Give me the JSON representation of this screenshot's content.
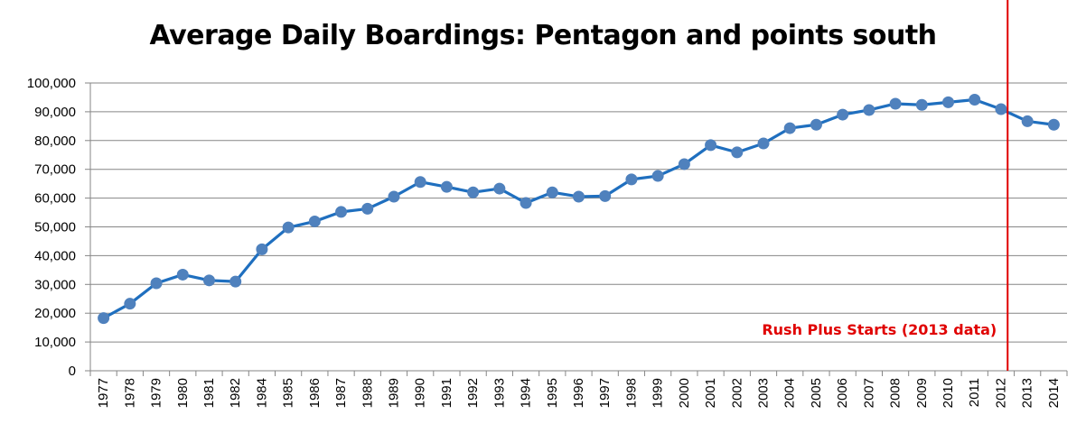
{
  "chart_data": {
    "type": "line",
    "title": "Average Daily Boardings: Pentagon and points south",
    "xlabel": "",
    "ylabel": "",
    "ylim": [
      0,
      100000
    ],
    "yticks": [
      "0",
      "10,000",
      "20,000",
      "30,000",
      "40,000",
      "50,000",
      "60,000",
      "70,000",
      "80,000",
      "90,000",
      "100,000"
    ],
    "grid": true,
    "categories": [
      "1977",
      "1978",
      "1979",
      "1980",
      "1981",
      "1982",
      "1984",
      "1985",
      "1986",
      "1987",
      "1988",
      "1989",
      "1990",
      "1991",
      "1992",
      "1993",
      "1994",
      "1995",
      "1996",
      "1997",
      "1998",
      "1999",
      "2000",
      "2001",
      "2002",
      "2003",
      "2004",
      "2005",
      "2006",
      "2007",
      "2008",
      "2009",
      "2010",
      "2011",
      "2012",
      "2013",
      "2014"
    ],
    "series": [
      {
        "values": [
          18300,
          23300,
          30400,
          33400,
          31400,
          31000,
          42200,
          49800,
          51900,
          55200,
          56300,
          60500,
          65600,
          63900,
          62000,
          63300,
          58300,
          62000,
          60500,
          60700,
          66500,
          67700,
          71800,
          78400,
          75900,
          79000,
          84300,
          85500,
          89000,
          90600,
          92800,
          92400,
          93300,
          94200,
          90900,
          86700,
          85500
        ],
        "color": "#1f6fbf",
        "marker_color": "#4f81bd"
      }
    ],
    "annotation": {
      "text": "Rush Plus Starts (2013 data)",
      "at_category": "2012",
      "position": "right-half of 2012 slot",
      "color": "#e00000"
    }
  }
}
